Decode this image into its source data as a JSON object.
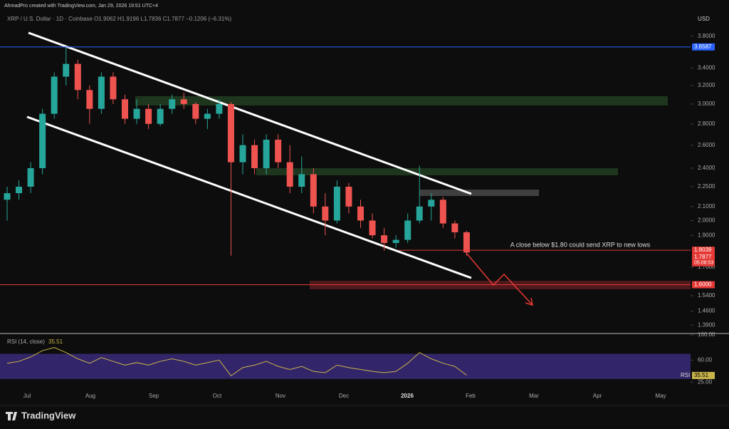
{
  "header": {
    "credit": "AhmadPro created with TradingView.com, Jan 29, 2026 19:51 UTC+4",
    "symbol": "XRP / U.S. Dollar · 1D · Coinbase  O1.9062  H1.9196  L1.7836  C1.7877  −0.1206 (−6.31%)",
    "currency": "USD"
  },
  "footer": {
    "logo": "TradingView"
  },
  "chart_data": {
    "type": "candlestick",
    "log_scale": true,
    "up_color": "#26a69a",
    "down_color": "#ef5350",
    "ylim": [
      1.35,
      4.1
    ],
    "yticks": [
      {
        "value": 3.8,
        "label": "3.8000"
      },
      {
        "value": 3.4,
        "label": "3.4000"
      },
      {
        "value": 3.2,
        "label": "3.2000"
      },
      {
        "value": 3.0,
        "label": "3.0000"
      },
      {
        "value": 2.8,
        "label": "2.8000"
      },
      {
        "value": 2.6,
        "label": "2.6000"
      },
      {
        "value": 2.4,
        "label": "2.4000"
      },
      {
        "value": 2.25,
        "label": "2.2500"
      },
      {
        "value": 2.1,
        "label": "2.1000"
      },
      {
        "value": 2.0,
        "label": "2.0000"
      },
      {
        "value": 1.9,
        "label": "1.9000"
      },
      {
        "value": 1.7,
        "label": "1.7000"
      },
      {
        "value": 1.54,
        "label": "1.5400"
      },
      {
        "value": 1.46,
        "label": "1.4600"
      },
      {
        "value": 1.39,
        "label": "1.3900"
      }
    ],
    "xticks": [
      "Jul",
      "Aug",
      "Sep",
      "Oct",
      "Nov",
      "Dec",
      "2026",
      "Feb",
      "Mar",
      "Apr",
      "May"
    ],
    "candles": [
      {
        "open": 2.15,
        "high": 2.25,
        "low": 2.0,
        "close": 2.2
      },
      {
        "open": 2.2,
        "high": 2.3,
        "low": 2.15,
        "close": 2.25
      },
      {
        "open": 2.25,
        "high": 2.45,
        "low": 2.2,
        "close": 2.4
      },
      {
        "open": 2.4,
        "high": 2.95,
        "low": 2.35,
        "close": 2.9
      },
      {
        "open": 2.9,
        "high": 3.35,
        "low": 2.85,
        "close": 3.3
      },
      {
        "open": 3.3,
        "high": 3.65,
        "low": 3.2,
        "close": 3.45
      },
      {
        "open": 3.45,
        "high": 3.5,
        "low": 3.05,
        "close": 3.15
      },
      {
        "open": 3.15,
        "high": 3.2,
        "low": 2.8,
        "close": 2.95
      },
      {
        "open": 2.95,
        "high": 3.35,
        "low": 2.9,
        "close": 3.3
      },
      {
        "open": 3.3,
        "high": 3.35,
        "low": 3.0,
        "close": 3.05
      },
      {
        "open": 3.05,
        "high": 3.1,
        "low": 2.8,
        "close": 2.85
      },
      {
        "open": 2.85,
        "high": 3.05,
        "low": 2.8,
        "close": 2.95
      },
      {
        "open": 2.95,
        "high": 3.0,
        "low": 2.75,
        "close": 2.8
      },
      {
        "open": 2.8,
        "high": 3.0,
        "low": 2.78,
        "close": 2.95
      },
      {
        "open": 2.95,
        "high": 3.1,
        "low": 2.9,
        "close": 3.05
      },
      {
        "open": 3.05,
        "high": 3.12,
        "low": 2.95,
        "close": 3.0
      },
      {
        "open": 3.0,
        "high": 3.02,
        "low": 2.8,
        "close": 2.85
      },
      {
        "open": 2.85,
        "high": 2.95,
        "low": 2.75,
        "close": 2.9
      },
      {
        "open": 2.9,
        "high": 3.05,
        "low": 2.85,
        "close": 3.0
      },
      {
        "open": 3.0,
        "high": 3.02,
        "low": 1.77,
        "close": 2.45
      },
      {
        "open": 2.45,
        "high": 2.7,
        "low": 2.35,
        "close": 2.6
      },
      {
        "open": 2.6,
        "high": 2.65,
        "low": 2.35,
        "close": 2.4
      },
      {
        "open": 2.4,
        "high": 2.7,
        "low": 2.35,
        "close": 2.65
      },
      {
        "open": 2.65,
        "high": 2.7,
        "low": 2.4,
        "close": 2.45
      },
      {
        "open": 2.45,
        "high": 2.6,
        "low": 2.2,
        "close": 2.25
      },
      {
        "open": 2.25,
        "high": 2.5,
        "low": 2.2,
        "close": 2.35
      },
      {
        "open": 2.35,
        "high": 2.4,
        "low": 2.05,
        "close": 2.1
      },
      {
        "open": 2.1,
        "high": 2.2,
        "low": 1.9,
        "close": 2.0
      },
      {
        "open": 2.0,
        "high": 2.3,
        "low": 1.98,
        "close": 2.25
      },
      {
        "open": 2.25,
        "high": 2.28,
        "low": 2.05,
        "close": 2.1
      },
      {
        "open": 2.1,
        "high": 2.15,
        "low": 1.95,
        "close": 2.0
      },
      {
        "open": 2.0,
        "high": 2.05,
        "low": 1.88,
        "close": 1.9
      },
      {
        "open": 1.9,
        "high": 1.95,
        "low": 1.8,
        "close": 1.85
      },
      {
        "open": 1.85,
        "high": 1.9,
        "low": 1.82,
        "close": 1.87
      },
      {
        "open": 1.87,
        "high": 2.05,
        "low": 1.85,
        "close": 2.0
      },
      {
        "open": 2.0,
        "high": 2.42,
        "low": 1.98,
        "close": 2.1
      },
      {
        "open": 2.1,
        "high": 2.2,
        "low": 2.0,
        "close": 2.15
      },
      {
        "open": 2.15,
        "high": 2.17,
        "low": 1.95,
        "close": 1.98
      },
      {
        "open": 1.98,
        "high": 2.0,
        "low": 1.88,
        "close": 1.92
      },
      {
        "open": 1.92,
        "high": 1.93,
        "low": 1.77,
        "close": 1.79
      }
    ],
    "price_lines": [
      {
        "value": 3.6587,
        "color": "#2962ff"
      },
      {
        "value": 1.8039,
        "color": "#e53935"
      },
      {
        "value": {
          "value": 1.6,
          "label": "1.6000"
        },
        "color": "#e53935"
      }
    ],
    "last_price": {
      "value": 1.7877,
      "countdown": "05:08:53",
      "color": "#e53935"
    },
    "annotation": "A close below $1.80 could send XRP to new lows",
    "rsi": {
      "title": "RSI (14, close)",
      "label": "RSI",
      "last": 35.51,
      "color": "#c9b44a",
      "band": [
        30,
        70
      ],
      "ylim": [
        15,
        100
      ],
      "yticks": [
        {
          "value": 100,
          "label": "100.00"
        },
        {
          "value": 60,
          "label": "60.00"
        },
        {
          "value": 25,
          "label": "25.00"
        }
      ],
      "values": [
        55,
        58,
        65,
        75,
        80,
        72,
        62,
        55,
        64,
        58,
        52,
        56,
        52,
        58,
        62,
        58,
        52,
        56,
        60,
        35,
        48,
        52,
        58,
        50,
        45,
        50,
        42,
        40,
        52,
        48,
        45,
        42,
        40,
        42,
        55,
        72,
        62,
        55,
        50,
        36
      ]
    }
  }
}
